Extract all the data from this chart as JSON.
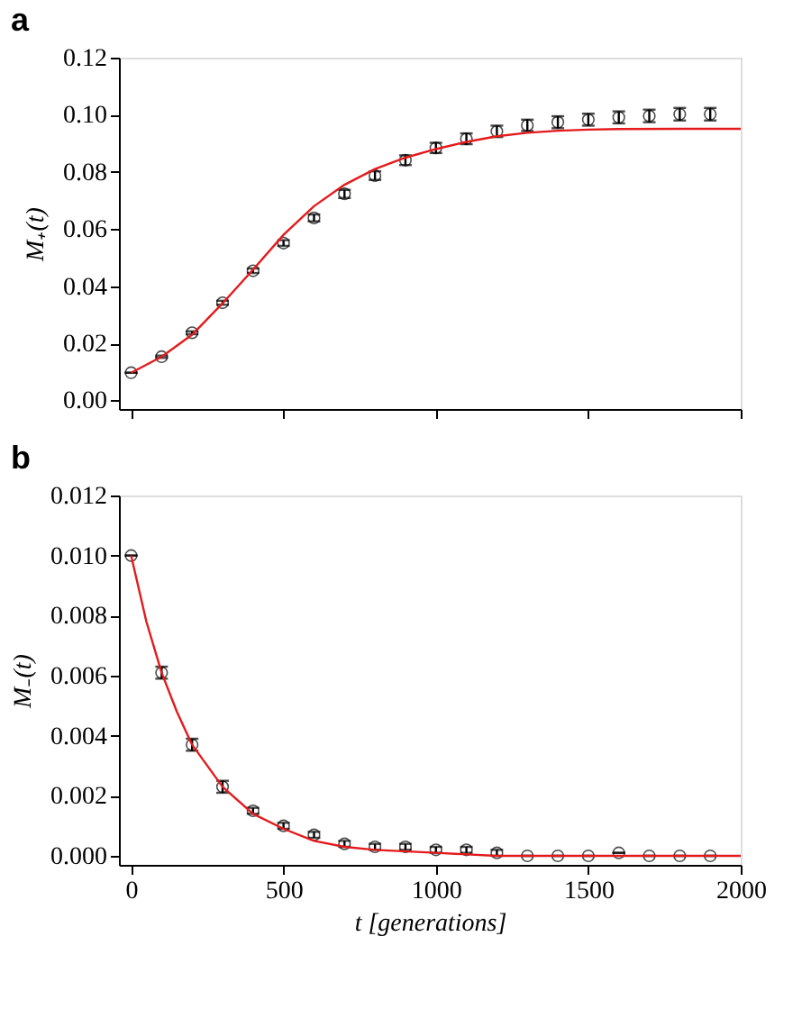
{
  "chart_data": [
    {
      "type": "scatter",
      "title": "a",
      "ylabel": "M₊(t)",
      "x": [
        0,
        100,
        200,
        300,
        400,
        500,
        600,
        700,
        800,
        900,
        1000,
        1100,
        1200,
        1300,
        1400,
        1500,
        1600,
        1700,
        1800,
        1900
      ],
      "xlim": [
        -40,
        2000
      ],
      "xticks": [
        {
          "value": 0,
          "label": null
        },
        {
          "value": 500,
          "label": null
        },
        {
          "value": 1000,
          "label": null
        },
        {
          "value": 1500,
          "label": null
        },
        {
          "value": 2000,
          "label": null
        }
      ],
      "ylim": [
        -0.003,
        0.12
      ],
      "yticks": [
        {
          "value": 0,
          "label": "0.00"
        },
        {
          "value": 0.02,
          "label": "0.02"
        },
        {
          "value": 0.04,
          "label": "0.04"
        },
        {
          "value": 0.06,
          "label": "0.06"
        },
        {
          "value": 0.08,
          "label": "0.08"
        },
        {
          "value": 0.1,
          "label": "0.10"
        },
        {
          "value": 0.12,
          "label": "0.12"
        }
      ],
      "tick_labels": "y",
      "grid": false,
      "series": [
        {
          "color": "#000000",
          "marker": "circle",
          "values": [
            0.0097,
            0.0153,
            0.0237,
            0.0342,
            0.0454,
            0.0551,
            0.0639,
            0.0723,
            0.0787,
            0.0841,
            0.0884,
            0.0916,
            0.0942,
            0.0963,
            0.0974,
            0.0983,
            0.0991,
            0.0996,
            0.1002,
            0.1002
          ],
          "errors": [
            0,
            0.0004,
            0.0005,
            0.0007,
            0.0008,
            0.001,
            0.0012,
            0.0014,
            0.0015,
            0.0017,
            0.0018,
            0.0019,
            0.002,
            0.002,
            0.0021,
            0.0021,
            0.0021,
            0.0022,
            0.0022,
            0.0022
          ]
        },
        {
          "type": "line",
          "color": "#e41a1c",
          "line_style": "solid",
          "x": [
            0,
            100,
            200,
            300,
            400,
            500,
            600,
            700,
            800,
            900,
            1000,
            1100,
            1200,
            1300,
            1400,
            1500,
            1600,
            1800,
            2000
          ],
          "values": [
            0.0097,
            0.0153,
            0.023,
            0.034,
            0.0458,
            0.058,
            0.068,
            0.0755,
            0.081,
            0.085,
            0.088,
            0.0905,
            0.0925,
            0.0937,
            0.0944,
            0.0948,
            0.095,
            0.0951,
            0.0951
          ]
        }
      ]
    },
    {
      "type": "scatter",
      "title": "b",
      "ylabel": "M₋(t)",
      "xlabel": "t [generations]",
      "x": [
        0,
        100,
        200,
        300,
        400,
        500,
        600,
        700,
        800,
        900,
        1000,
        1100,
        1200,
        1300,
        1400,
        1500,
        1600,
        1700,
        1800,
        1900
      ],
      "xlim": [
        -40,
        2000
      ],
      "xticks": [
        0,
        500,
        1000,
        1500,
        2000
      ],
      "ylim": [
        -0.0003,
        0.012
      ],
      "yticks": [
        {
          "value": 0,
          "label": "0.000"
        },
        {
          "value": 0.002,
          "label": "0.002"
        },
        {
          "value": 0.004,
          "label": "0.004"
        },
        {
          "value": 0.006,
          "label": "0.006"
        },
        {
          "value": 0.008,
          "label": "0.008"
        },
        {
          "value": 0.01,
          "label": "0.010"
        },
        {
          "value": 0.012,
          "label": "0.012"
        }
      ],
      "grid": false,
      "series": [
        {
          "color": "#000000",
          "marker": "circle",
          "values": [
            0.01,
            0.0061,
            0.0037,
            0.0023,
            0.0015,
            0.001,
            0.0007,
            0.0004,
            0.0003,
            0.0003,
            0.0002,
            0.0002,
            0.0001,
            0,
            0,
            0,
            0.0001,
            0,
            0,
            0
          ],
          "errors": [
            0,
            0.0002,
            0.0002,
            0.0002,
            0.0001,
            0.0001,
            0.0001,
            0.0001,
            0.0001,
            0.0001,
            0.0001,
            0.0001,
            0.0001,
            0,
            0,
            0,
            0,
            0,
            0,
            0
          ]
        },
        {
          "type": "line",
          "color": "#e41a1c",
          "line_style": "solid",
          "x": [
            0,
            50,
            100,
            150,
            200,
            300,
            400,
            500,
            600,
            700,
            800,
            1000,
            1200,
            1500,
            2000
          ],
          "values": [
            0.01,
            0.0078,
            0.0061,
            0.0048,
            0.0037,
            0.0023,
            0.0014,
            0.0009,
            0.0005,
            0.0003,
            0.0002,
            0.0001,
            0,
            0,
            0
          ]
        }
      ]
    }
  ]
}
